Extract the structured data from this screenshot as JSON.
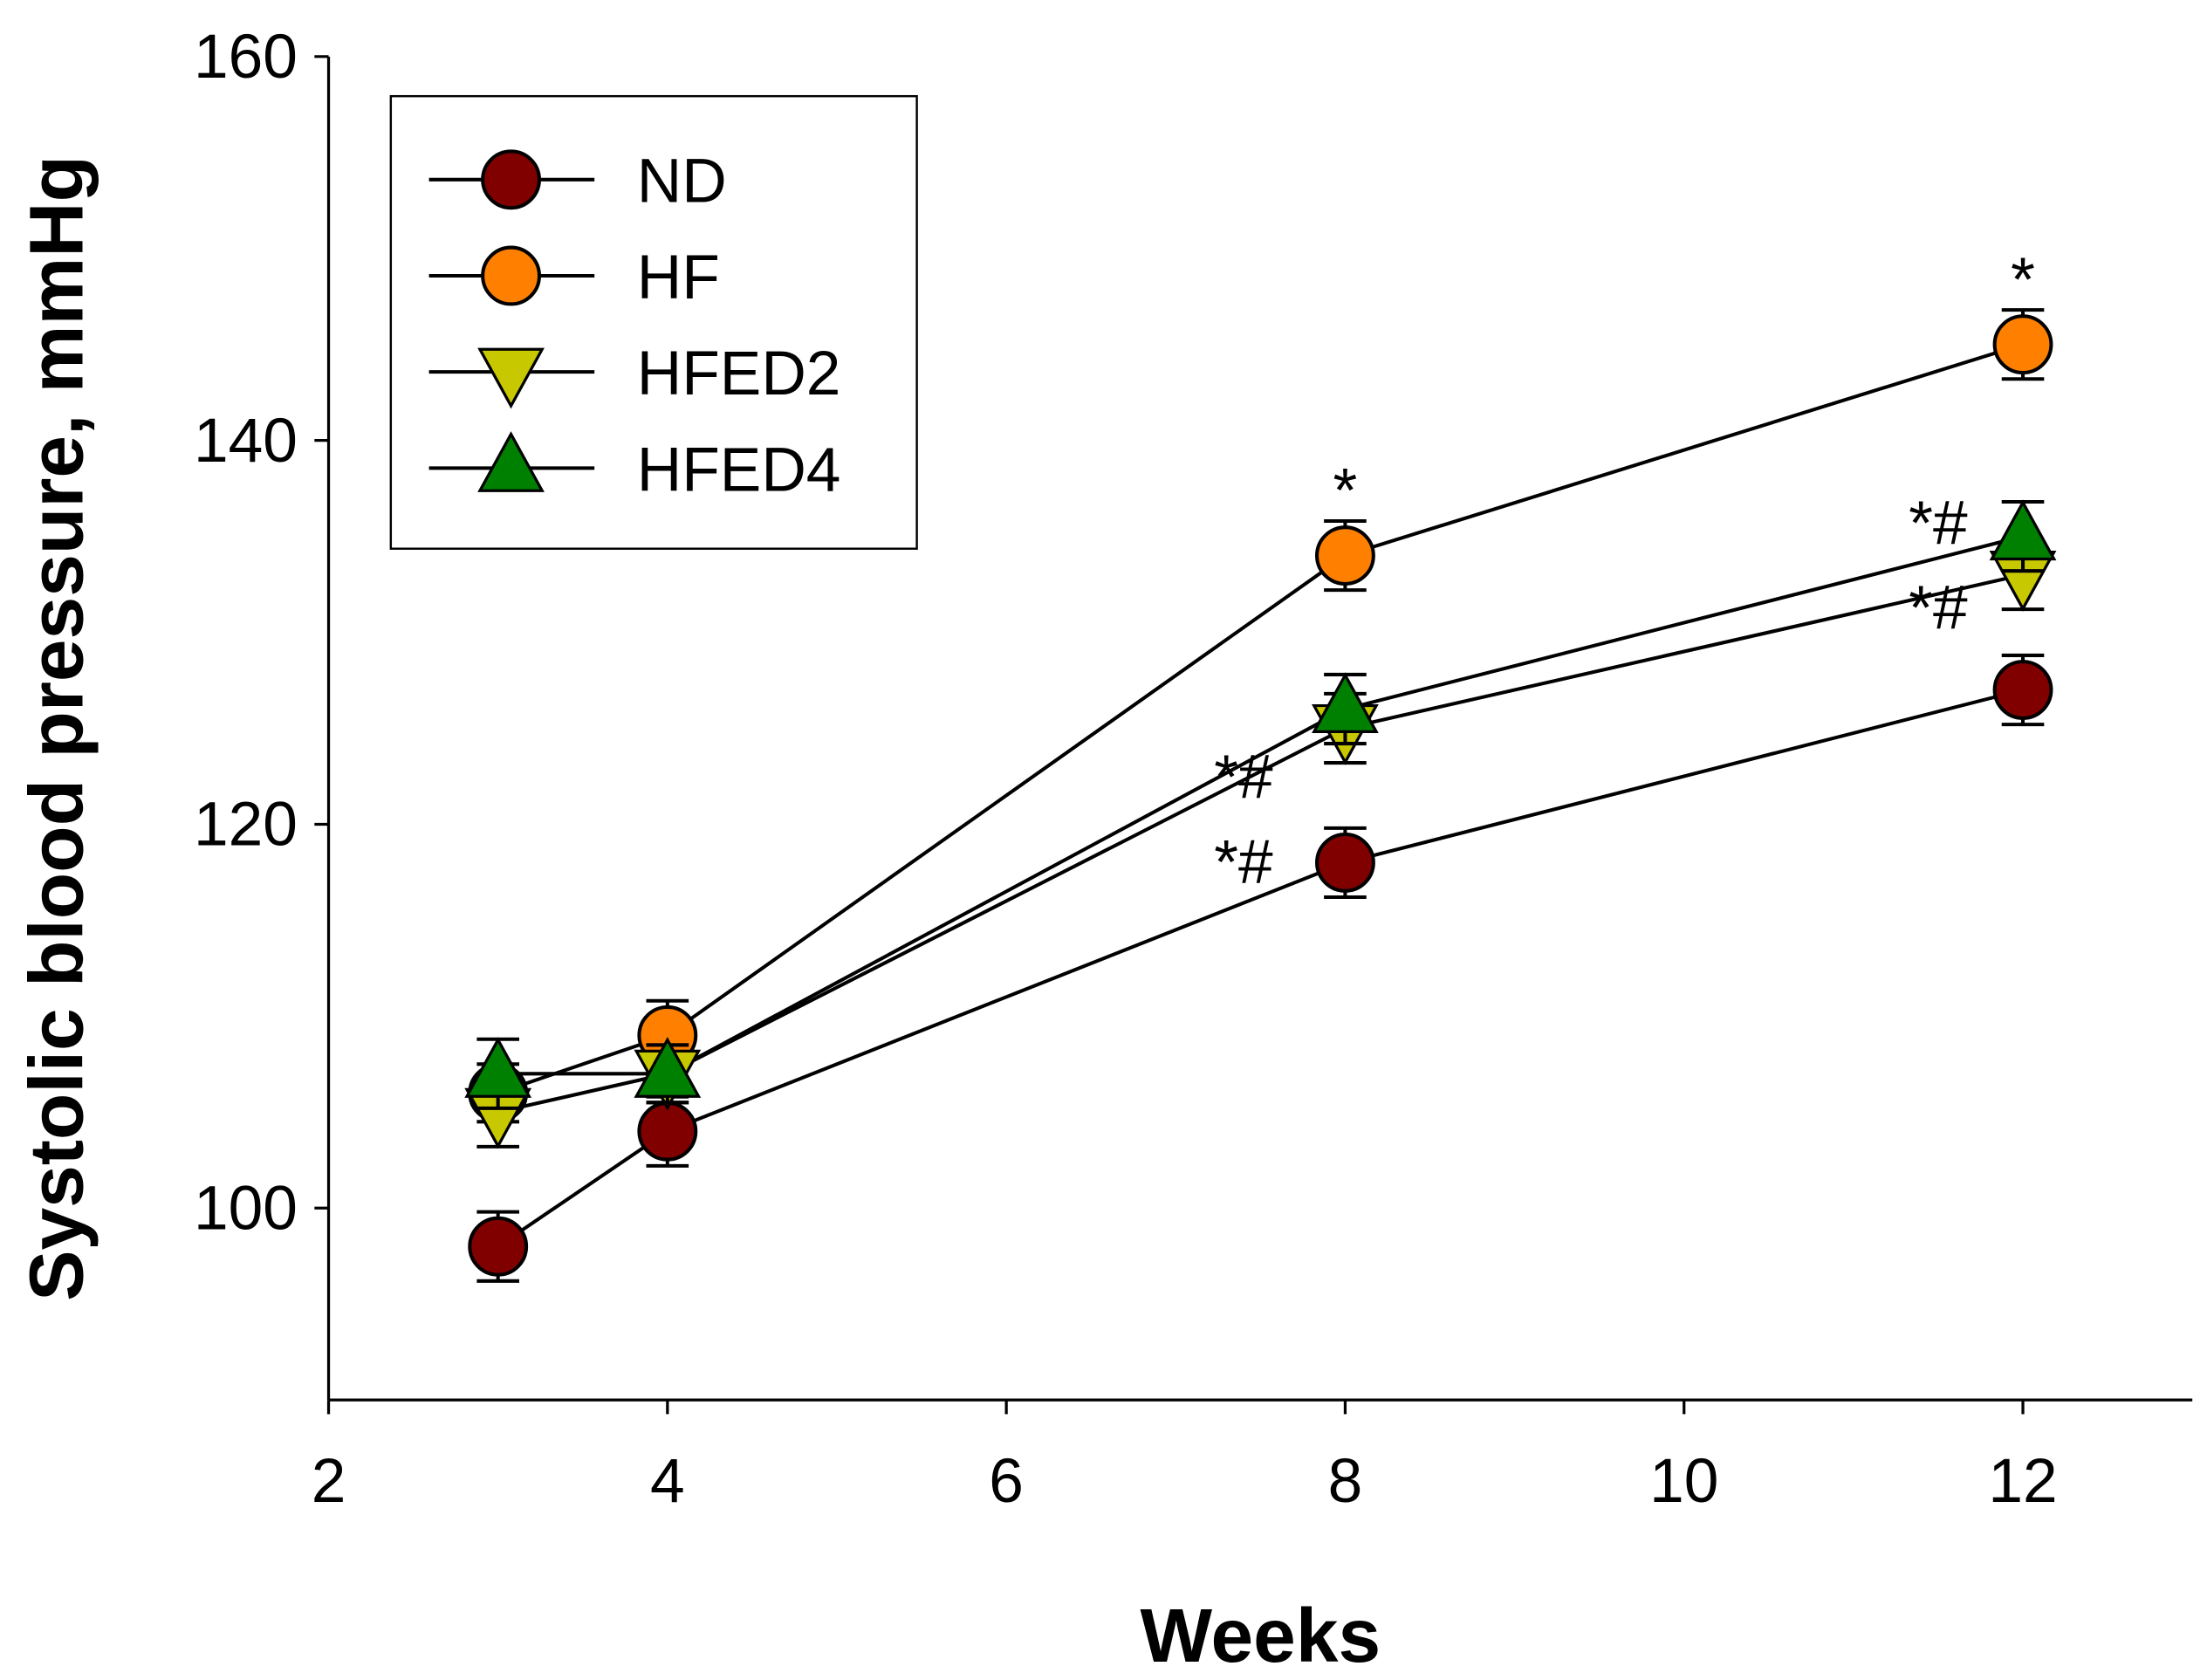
{
  "chart_data": {
    "type": "line",
    "title": "",
    "xlabel": "Weeks",
    "ylabel": "Systolic blood pressure, mmHg",
    "xlim": [
      2,
      13
    ],
    "ylim": [
      90,
      160
    ],
    "xticks": [
      2,
      4,
      6,
      8,
      10,
      12
    ],
    "yticks": [
      100,
      120,
      140,
      160
    ],
    "grid": false,
    "legend_position": "top-left",
    "x": [
      3,
      4,
      8,
      12
    ],
    "series": [
      {
        "name": "ND",
        "marker": "circle",
        "color": "#800000",
        "values": [
          98,
          104,
          118,
          127
        ],
        "errors": [
          1.8,
          1.8,
          1.8,
          1.8
        ]
      },
      {
        "name": "HF",
        "marker": "circle",
        "color": "#ff8000",
        "values": [
          106,
          109,
          134,
          145
        ],
        "errors": [
          1.5,
          1.8,
          1.8,
          1.8
        ]
      },
      {
        "name": "HFED2",
        "marker": "triangle-down",
        "color": "#c8c800",
        "values": [
          105,
          107,
          125,
          133
        ],
        "errors": [
          1.8,
          1.5,
          1.8,
          1.8
        ]
      },
      {
        "name": "HFED4",
        "marker": "triangle-up",
        "color": "#008000",
        "values": [
          107,
          107,
          126,
          135
        ],
        "errors": [
          1.8,
          1.5,
          1.8,
          1.8
        ]
      }
    ],
    "annotations": [
      {
        "text": "*",
        "x": 8,
        "y": 138.5
      },
      {
        "text": "*",
        "x": 12,
        "y": 149.5
      },
      {
        "text": "*#",
        "x": 7.4,
        "y": 121.5
      },
      {
        "text": "*#",
        "x": 7.4,
        "y": 119
      },
      {
        "text": "*#",
        "x": 11.5,
        "y": 135
      },
      {
        "text": "*#",
        "x": 11.5,
        "y": 132
      }
    ]
  }
}
